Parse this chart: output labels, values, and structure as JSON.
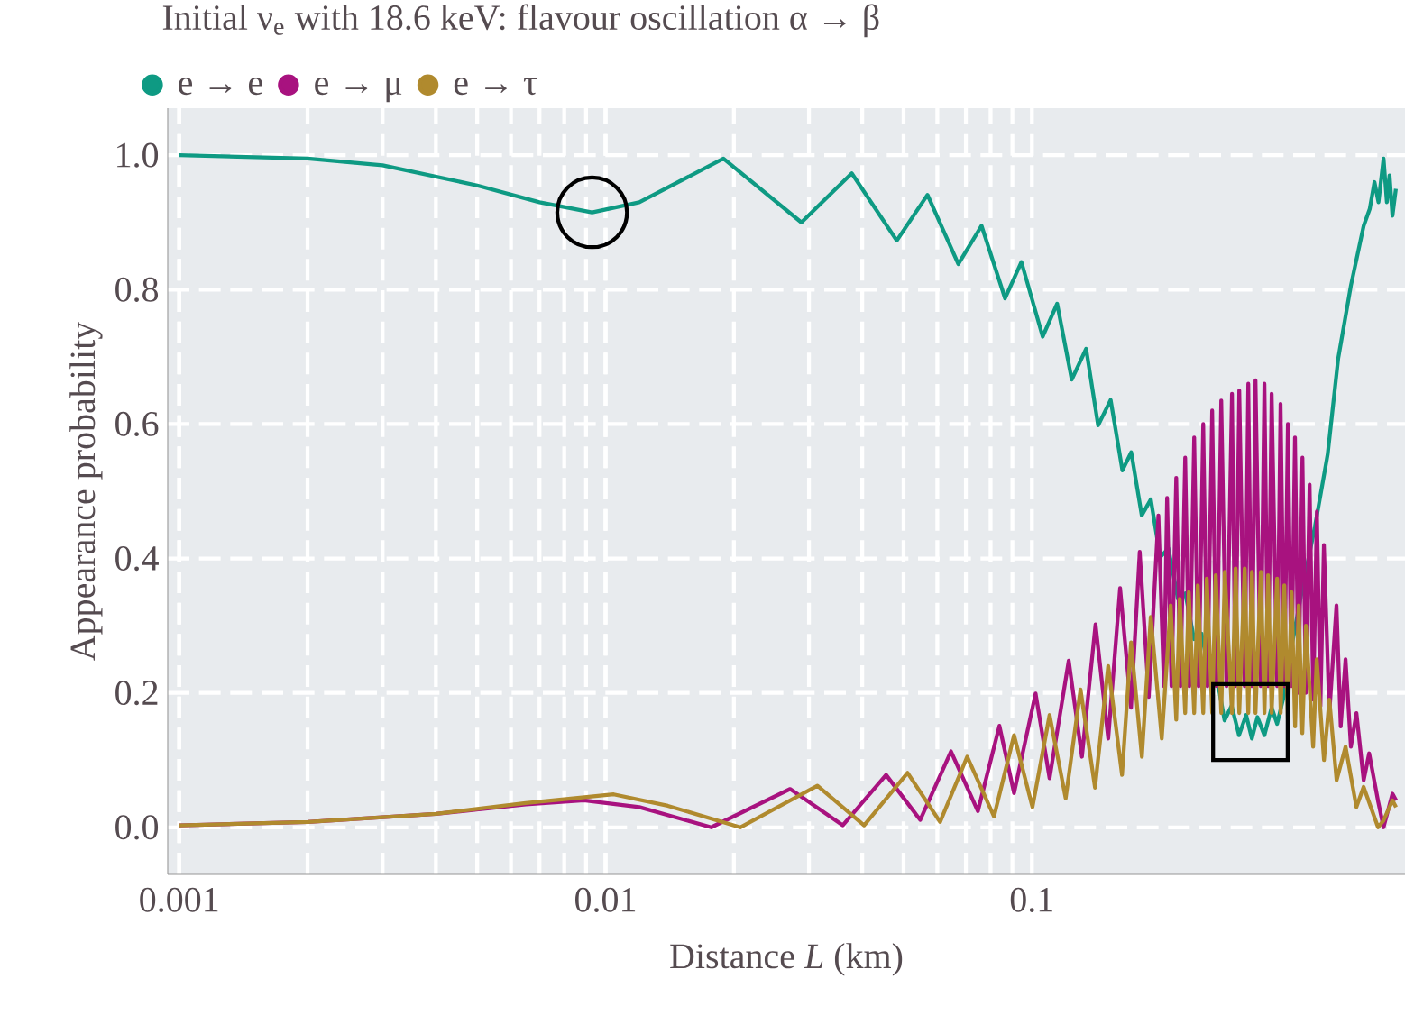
{
  "chart_data": {
    "type": "line",
    "title": "Initial ν$_{e}$ with 18.6 keV: flavour oscillation α → β",
    "xlabel": "Distance *L* (km)",
    "ylabel": "Appearance probability",
    "log": "x",
    "grid": true,
    "legend": "top left",
    "xlim": [
      0.00094,
      0.75
    ],
    "ylim": [
      -0.07,
      1.07
    ],
    "xticks": [
      0.001,
      0.01,
      0.1
    ],
    "yticks": [
      {
        "value": 0,
        "label": "0.0"
      },
      {
        "value": 0.2,
        "label": "0.2"
      },
      {
        "value": 0.4,
        "label": "0.4"
      },
      {
        "value": 0.6,
        "label": "0.6"
      },
      {
        "value": 0.8,
        "label": "0.8"
      },
      {
        "value": 1,
        "label": "1.0"
      }
    ],
    "series": [
      {
        "name": "e → e",
        "color": "#0e9a83",
        "x": [
          0.001,
          0.002,
          0.003,
          0.005,
          0.007,
          0.0093,
          0.012,
          0.0189,
          0.0288,
          0.0378,
          0.0482,
          0.0569,
          0.0672,
          0.0762,
          0.0865,
          0.0945,
          0.106,
          0.1146,
          0.124,
          0.134,
          0.143,
          0.153,
          0.163,
          0.171,
          0.181,
          0.19,
          0.2,
          0.209,
          0.22,
          0.229,
          0.24,
          0.25,
          0.262,
          0.27,
          0.283,
          0.294,
          0.306,
          0.318,
          0.328,
          0.338,
          0.351,
          0.365,
          0.376,
          0.391,
          0.406,
          0.431,
          0.461,
          0.494,
          0.523,
          0.56,
          0.6,
          0.62,
          0.636,
          0.65,
          0.668,
          0.68,
          0.69,
          0.701,
          0.714
        ],
        "values": [
          1.0,
          0.995,
          0.985,
          0.955,
          0.93,
          0.915,
          0.93,
          0.995,
          0.9,
          0.973,
          0.873,
          0.941,
          0.838,
          0.895,
          0.787,
          0.841,
          0.73,
          0.779,
          0.666,
          0.712,
          0.598,
          0.636,
          0.531,
          0.558,
          0.464,
          0.488,
          0.402,
          0.415,
          0.34,
          0.348,
          0.28,
          0.288,
          0.221,
          0.232,
          0.159,
          0.181,
          0.137,
          0.167,
          0.132,
          0.164,
          0.137,
          0.178,
          0.154,
          0.199,
          0.267,
          0.356,
          0.447,
          0.555,
          0.698,
          0.806,
          0.895,
          0.92,
          0.96,
          0.93,
          0.995,
          0.93,
          0.97,
          0.91,
          0.95
        ]
      },
      {
        "name": "e → μ",
        "color": "#a8127f",
        "x": [
          0.001,
          0.002,
          0.004,
          0.0065,
          0.0089,
          0.012,
          0.0177,
          0.0271,
          0.036,
          0.0455,
          0.0547,
          0.0646,
          0.0747,
          0.0839,
          0.0908,
          0.102,
          0.11,
          0.122,
          0.131,
          0.141,
          0.151,
          0.161,
          0.1708,
          0.179,
          0.188,
          0.198,
          0.204,
          0.2075,
          0.2125,
          0.218,
          0.223,
          0.2288,
          0.234,
          0.2402,
          0.246,
          0.2522,
          0.258,
          0.2647,
          0.271,
          0.278,
          0.286,
          0.2946,
          0.3,
          0.3064,
          0.3155,
          0.3217,
          0.328,
          0.3345,
          0.344,
          0.351,
          0.358,
          0.365,
          0.376,
          0.383,
          0.391,
          0.3985,
          0.406,
          0.414,
          0.422,
          0.431,
          0.439,
          0.448,
          0.457,
          0.466,
          0.475,
          0.484,
          0.4985,
          0.518,
          0.53,
          0.544,
          0.56,
          0.577,
          0.6,
          0.618,
          0.648,
          0.668,
          0.701,
          0.715
        ],
        "values": [
          0.003,
          0.008,
          0.02,
          0.034,
          0.04,
          0.03,
          0.0,
          0.057,
          0.003,
          0.078,
          0.011,
          0.113,
          0.024,
          0.151,
          0.051,
          0.199,
          0.073,
          0.248,
          0.105,
          0.302,
          0.132,
          0.356,
          0.178,
          0.41,
          0.194,
          0.464,
          0.21,
          0.49,
          0.21,
          0.52,
          0.21,
          0.55,
          0.21,
          0.58,
          0.21,
          0.6,
          0.21,
          0.62,
          0.21,
          0.635,
          0.21,
          0.645,
          0.21,
          0.65,
          0.21,
          0.66,
          0.21,
          0.665,
          0.21,
          0.66,
          0.21,
          0.645,
          0.21,
          0.63,
          0.21,
          0.6,
          0.21,
          0.58,
          0.2,
          0.55,
          0.2,
          0.51,
          0.19,
          0.47,
          0.18,
          0.42,
          0.17,
          0.33,
          0.15,
          0.25,
          0.12,
          0.17,
          0.07,
          0.11,
          0.04,
          0.0,
          0.05,
          0.04
        ]
      },
      {
        "name": "e → τ",
        "color": "#b08a2e",
        "x": [
          0.001,
          0.002,
          0.004,
          0.0065,
          0.01045,
          0.014,
          0.0207,
          0.0314,
          0.0404,
          0.0511,
          0.0609,
          0.0705,
          0.0815,
          0.0908,
          0.1003,
          0.11,
          0.12,
          0.13,
          0.1406,
          0.151,
          0.1627,
          0.1708,
          0.1811,
          0.19,
          0.2016,
          0.2115,
          0.218,
          0.2222,
          0.2288,
          0.2333,
          0.2402,
          0.2449,
          0.2522,
          0.2571,
          0.2647,
          0.2699,
          0.278,
          0.2834,
          0.2946,
          0.3004,
          0.3064,
          0.3155,
          0.3217,
          0.3281,
          0.3345,
          0.3443,
          0.3511,
          0.358,
          0.365,
          0.3759,
          0.3833,
          0.3908,
          0.3985,
          0.4064,
          0.4143,
          0.4224,
          0.4307,
          0.4392,
          0.4566,
          0.4656,
          0.4842,
          0.4985,
          0.5183,
          0.5441,
          0.577,
          0.5998,
          0.6484,
          0.6677,
          0.7011,
          0.7148
        ],
        "values": [
          0.003,
          0.008,
          0.02,
          0.036,
          0.049,
          0.032,
          0.0,
          0.062,
          0.003,
          0.081,
          0.008,
          0.105,
          0.016,
          0.137,
          0.03,
          0.167,
          0.043,
          0.205,
          0.059,
          0.24,
          0.078,
          0.275,
          0.105,
          0.313,
          0.132,
          0.33,
          0.16,
          0.34,
          0.17,
          0.35,
          0.17,
          0.36,
          0.17,
          0.37,
          0.17,
          0.375,
          0.17,
          0.38,
          0.17,
          0.385,
          0.17,
          0.385,
          0.17,
          0.38,
          0.17,
          0.38,
          0.17,
          0.375,
          0.17,
          0.37,
          0.17,
          0.36,
          0.16,
          0.35,
          0.15,
          0.33,
          0.14,
          0.3,
          0.12,
          0.25,
          0.1,
          0.19,
          0.07,
          0.12,
          0.03,
          0.06,
          0.0,
          0.01,
          0.04,
          0.03
        ]
      }
    ]
  }
}
